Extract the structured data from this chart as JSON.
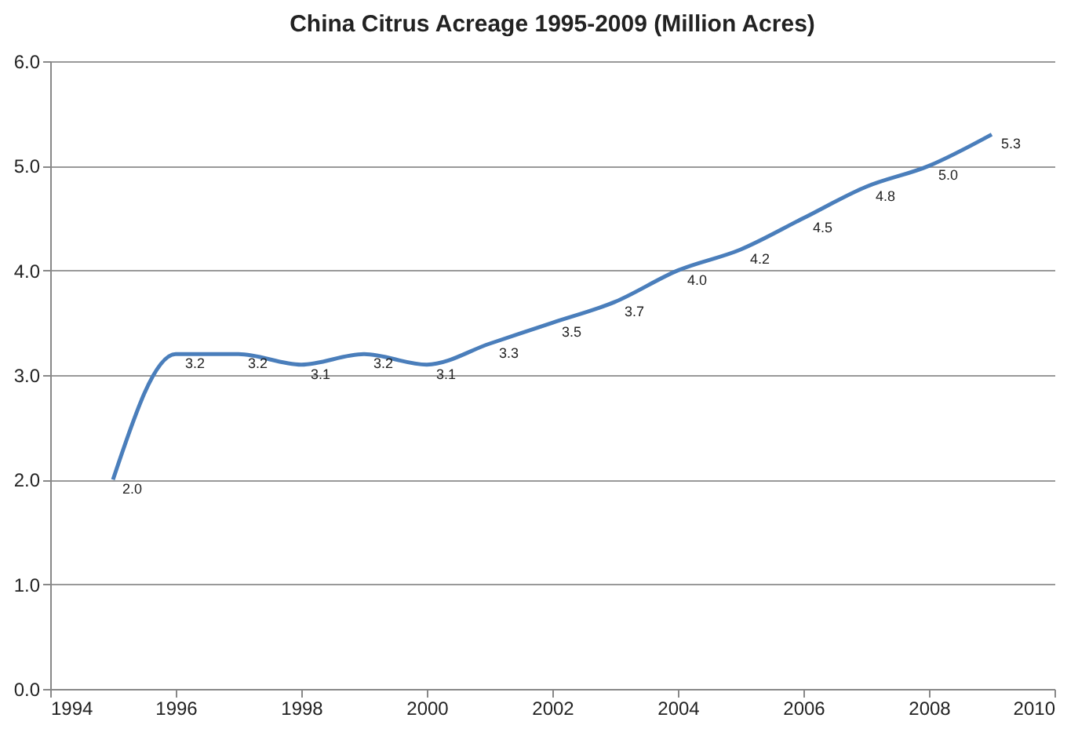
{
  "chart_data": {
    "type": "line",
    "title": "China Citrus Acreage 1995-2009 (Million Acres)",
    "x": [
      1995,
      1996,
      1997,
      1998,
      1999,
      2000,
      2001,
      2002,
      2003,
      2004,
      2005,
      2006,
      2007,
      2008,
      2009
    ],
    "series": [
      {
        "color": "#4a7ebb",
        "values": [
          2.0,
          3.2,
          3.2,
          3.1,
          3.2,
          3.1,
          3.3,
          3.5,
          3.7,
          4.0,
          4.2,
          4.5,
          4.8,
          5.0,
          5.3
        ],
        "value_labels": [
          "2.0",
          "3.2",
          "3.2",
          "3.1",
          "3.2",
          "3.1",
          "3.3",
          "3.5",
          "3.7",
          "4.0",
          "4.2",
          "4.5",
          "4.8",
          "5.0",
          "5.3"
        ]
      }
    ],
    "xlim": [
      1994,
      2010
    ],
    "xticks": [
      1994,
      1996,
      1998,
      2000,
      2002,
      2004,
      2006,
      2008,
      2010
    ],
    "ylim": [
      0,
      6
    ],
    "yticks": [
      {
        "value": 0,
        "label": "0.0"
      },
      {
        "value": 1,
        "label": "1.0"
      },
      {
        "value": 2,
        "label": "2.0"
      },
      {
        "value": 3,
        "label": "3.0"
      },
      {
        "value": 4,
        "label": "4.0"
      },
      {
        "value": 5,
        "label": "5.0"
      },
      {
        "value": 6,
        "label": "6.0"
      }
    ],
    "grid": "y",
    "legend": false,
    "marker": "none",
    "line_style": "solid"
  }
}
